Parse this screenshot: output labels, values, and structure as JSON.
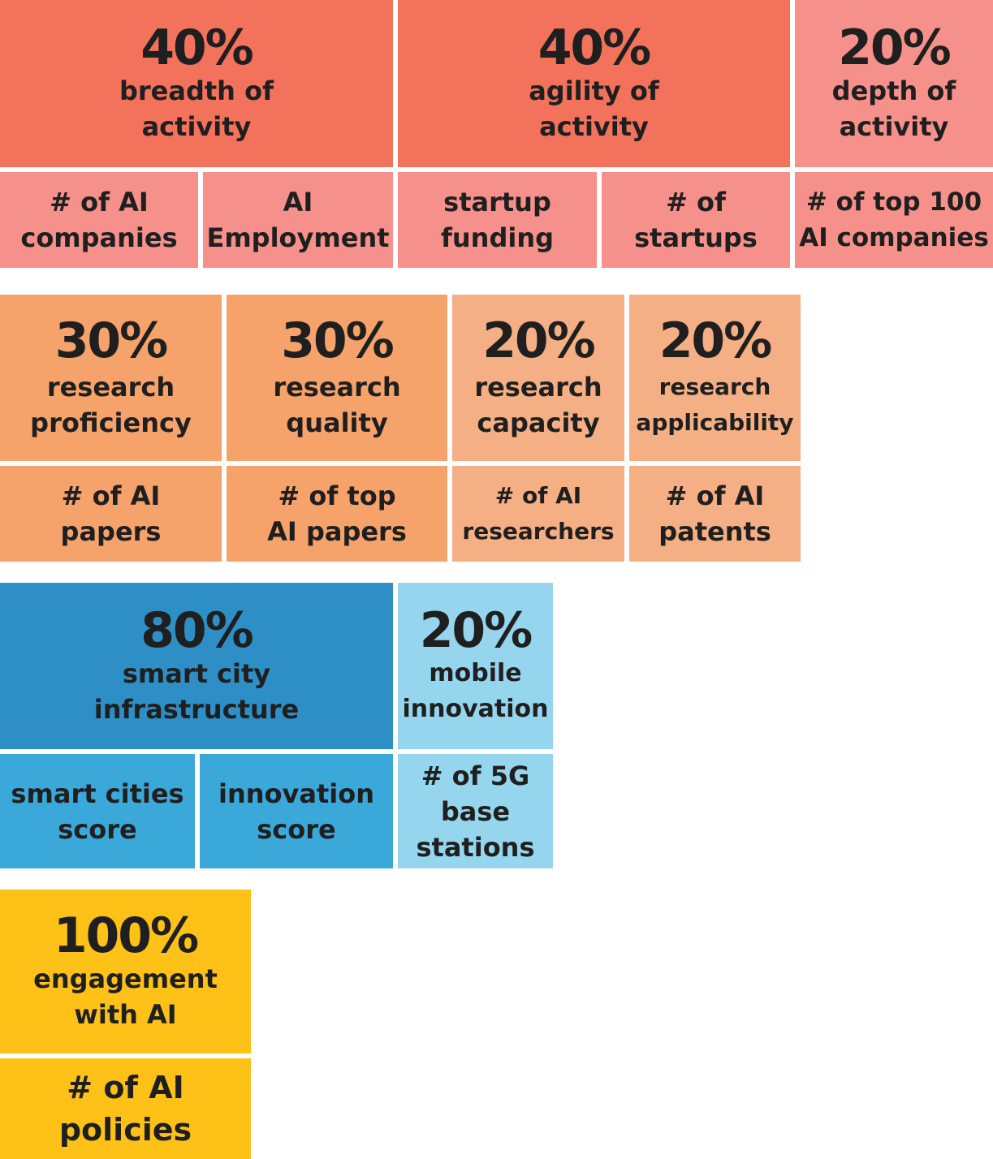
{
  "colors": {
    "red_dark": "#f2725c",
    "red_light": "#f5918a",
    "orange_dark": "#f5a26b",
    "orange_light": "#f5af84",
    "blue_dark": "#2e8fc6",
    "blue_mid": "#3ba8da",
    "blue_light": "#95d6ee",
    "yellow": "#fdc117"
  },
  "rows": {
    "activity": {
      "breadth": {
        "pct": "40%",
        "label": "breadth of\nactivity"
      },
      "agility": {
        "pct": "40%",
        "label": "agility of\nactivity"
      },
      "depth": {
        "pct": "20%",
        "label": "depth of\nactivity"
      },
      "subs": {
        "ai_companies": "# of AI\ncompanies",
        "ai_employment": "AI\nEmployment",
        "startup_funding": "startup\nfunding",
        "num_startups": "# of\nstartups",
        "top100": "# of top 100\nAI companies"
      }
    },
    "research": {
      "proficiency": {
        "pct": "30%",
        "label": "research\nproficiency"
      },
      "quality": {
        "pct": "30%",
        "label": "research\nquality"
      },
      "capacity": {
        "pct": "20%",
        "label": "research\ncapacity"
      },
      "applicability": {
        "pct": "20%",
        "label": "research\napplicability"
      },
      "subs": {
        "ai_papers": "# of AI\npapers",
        "top_ai_papers": "# of top\nAI papers",
        "ai_researchers": "# of AI\nresearchers",
        "ai_patents": "# of AI\npatents"
      }
    },
    "infrastructure": {
      "smart_city": {
        "pct": "80%",
        "label": "smart city\ninfrastructure"
      },
      "mobile": {
        "pct": "20%",
        "label": "mobile\ninnovation"
      },
      "subs": {
        "smart_cities_score": "smart cities\nscore",
        "innovation_score": "innovation\nscore",
        "base_stations": "# of 5G\nbase\nstations"
      }
    },
    "engagement": {
      "main": {
        "pct": "100%",
        "label": "engagement\nwith AI"
      },
      "subs": {
        "ai_policies": "# of AI\npolicies"
      }
    }
  }
}
